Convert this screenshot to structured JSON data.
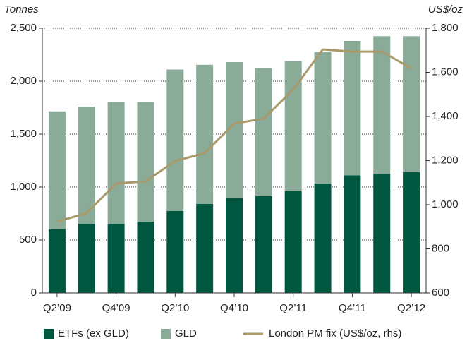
{
  "chart_data": {
    "type": "bar",
    "categories": [
      "Q2’09",
      null,
      "Q4’09",
      null,
      "Q2’10",
      null,
      "Q4’10",
      null,
      "Q2’11",
      null,
      "Q4’11",
      null,
      "Q2’12"
    ],
    "series": [
      {
        "name": "ETFs (ex GLD)",
        "color": "#00573f",
        "values": [
          600,
          655,
          655,
          675,
          775,
          840,
          895,
          915,
          960,
          1035,
          1110,
          1125,
          1140
        ]
      },
      {
        "name": "GLD",
        "color": "#8aab98",
        "values": [
          1115,
          1105,
          1150,
          1130,
          1335,
          1315,
          1285,
          1210,
          1230,
          1240,
          1270,
          1300,
          1285
        ]
      },
      {
        "name": "London PM fix (US$/oz, rhs)",
        "color": "#a89a6a",
        "type": "line",
        "axis": "y2",
        "values": [
          923,
          962,
          1096,
          1106,
          1198,
          1234,
          1368,
          1390,
          1522,
          1704,
          1694,
          1694,
          1618
        ]
      }
    ],
    "ylabel": "Tonnes",
    "y2label": "US$/oz",
    "ylim": [
      0,
      2500
    ],
    "yticks": [
      0,
      500,
      {
        "value": 1000,
        "label": "1,000"
      },
      {
        "value": 1500,
        "label": "1,500"
      },
      {
        "value": 2000,
        "label": "2,000"
      },
      {
        "value": 2500,
        "label": "2,500"
      }
    ],
    "y2lim": [
      600,
      1800
    ],
    "y2ticks": [
      600,
      800,
      {
        "value": 1000,
        "label": "1,000"
      },
      {
        "value": 1200,
        "label": "1,200"
      },
      {
        "value": 1400,
        "label": "1,400"
      },
      {
        "value": 1600,
        "label": "1,600"
      },
      {
        "value": 1800,
        "label": "1,800"
      }
    ],
    "grid": true,
    "stacked": true,
    "legend": "bottom"
  }
}
